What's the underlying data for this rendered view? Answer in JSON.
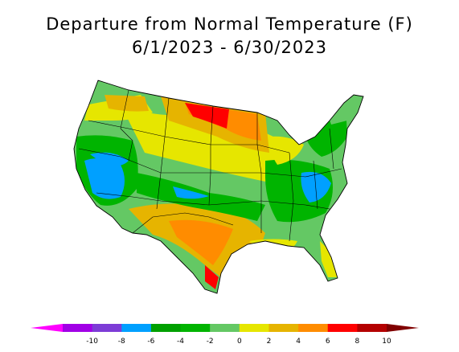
{
  "title": {
    "line1": "Departure from Normal Temperature (F)",
    "line2": "6/1/2023 - 6/30/2023"
  },
  "legend": {
    "bins": [
      {
        "color": "#ff00ff"
      },
      {
        "color": "#a100e6"
      },
      {
        "color": "#7d3cd6"
      },
      {
        "color": "#00a0ff"
      },
      {
        "color": "#00a000"
      },
      {
        "color": "#00b400"
      },
      {
        "color": "#64c864"
      },
      {
        "color": "#e6e600"
      },
      {
        "color": "#e6b400"
      },
      {
        "color": "#ff8c00"
      },
      {
        "color": "#ff0000"
      },
      {
        "color": "#b40000"
      },
      {
        "color": "#800000"
      }
    ],
    "labels": [
      "-10",
      "-8",
      "-6",
      "-4",
      "-2",
      "0",
      "2",
      "4",
      "6",
      "8",
      "10"
    ]
  },
  "colors": {
    "background": "#ffffff",
    "state_lines": "#000000"
  }
}
